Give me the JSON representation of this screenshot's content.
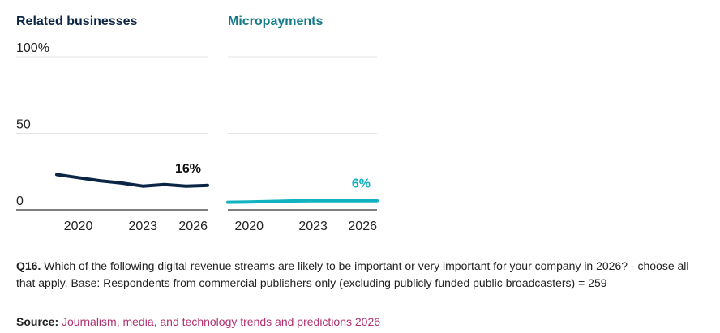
{
  "chart_data": [
    {
      "type": "line",
      "title": "Related businesses",
      "title_color": "#0b2545",
      "line_color": "#0b2545",
      "x": [
        2019,
        2020,
        2021,
        2022,
        2023,
        2024,
        2025,
        2026
      ],
      "values": [
        23,
        21,
        19,
        17.5,
        15.5,
        16.5,
        15.5,
        16
      ],
      "ylim": [
        0,
        100
      ],
      "yticks": [
        0,
        50,
        100
      ],
      "ytick_labels": [
        "0",
        "50",
        "100%"
      ],
      "xticks": [
        2020,
        2023,
        2026
      ],
      "xtick_labels": [
        "2020",
        "2023",
        "2026"
      ],
      "end_label": "16%",
      "grid": true
    },
    {
      "type": "line",
      "title": "Micropayments",
      "title_color": "#127a87",
      "line_color": "#12b3c0",
      "x": [
        2019,
        2020,
        2021,
        2022,
        2023,
        2024,
        2025,
        2026
      ],
      "values": [
        5,
        5.2,
        5.5,
        5.8,
        6,
        6,
        6,
        6
      ],
      "ylim": [
        0,
        100
      ],
      "yticks": [
        0,
        50,
        100
      ],
      "xticks": [
        2020,
        2023,
        2026
      ],
      "xtick_labels": [
        "2020",
        "2023",
        "2026"
      ],
      "end_label": "6%",
      "grid": true
    }
  ],
  "footnote": {
    "q_label": "Q16.",
    "text": "Which of the following digital revenue streams are likely to be important or very important for your company in 2026? - choose all that apply. Base: Respondents from commercial publishers only (excluding publicly funded public broadcasters) = 259"
  },
  "source": {
    "label": "Source:",
    "link_text": "Journalism, media, and technology trends and predictions 2026"
  }
}
